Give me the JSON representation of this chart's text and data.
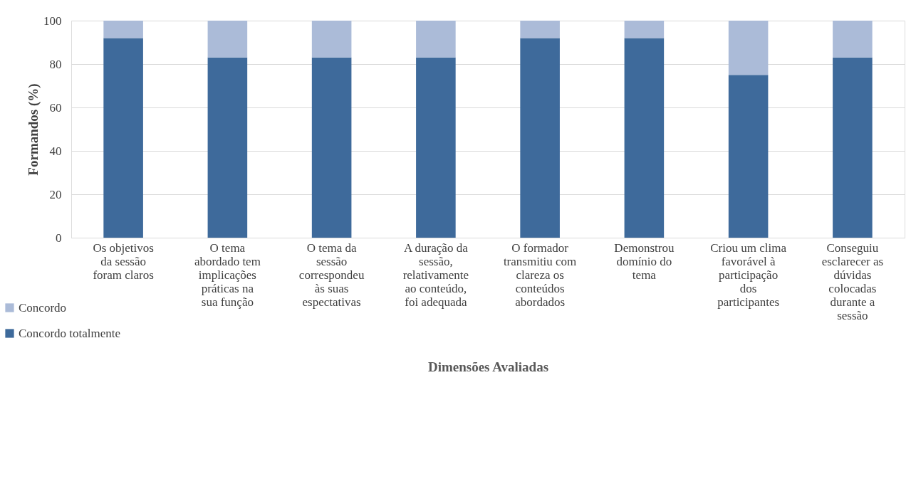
{
  "chart_data": {
    "type": "bar",
    "stacked": true,
    "xlabel": "Dimensões Avaliadas",
    "ylabel": "Formandos (%)",
    "categories": [
      "Os objetivos da sessão foram claros",
      "O tema abordado tem implicações práticas na sua função",
      "O tema da sessão correspondeu às suas espectativas",
      "A duração da sessão, relativamente ao conteúdo, foi adequada",
      "O formador transmitiu com clareza os conteúdos abordados",
      "Demonstrou domínio do tema",
      "Criou um clima favorável à participação dos participantes",
      "Conseguiu esclarecer as dúvidas colocadas durante a sessão"
    ],
    "series": [
      {
        "name": "Concordo totalmente",
        "color": "#3e6a9b",
        "values": [
          92,
          83,
          83,
          83,
          92,
          92,
          75,
          83
        ]
      },
      {
        "name": "Concordo",
        "color": "#abbbd8",
        "values": [
          8,
          17,
          17,
          17,
          8,
          8,
          25,
          17
        ]
      }
    ],
    "ylim": [
      0,
      100
    ],
    "yticks": [
      0,
      20,
      40,
      60,
      80,
      100
    ],
    "grid": "y",
    "legend": "bottom left"
  }
}
